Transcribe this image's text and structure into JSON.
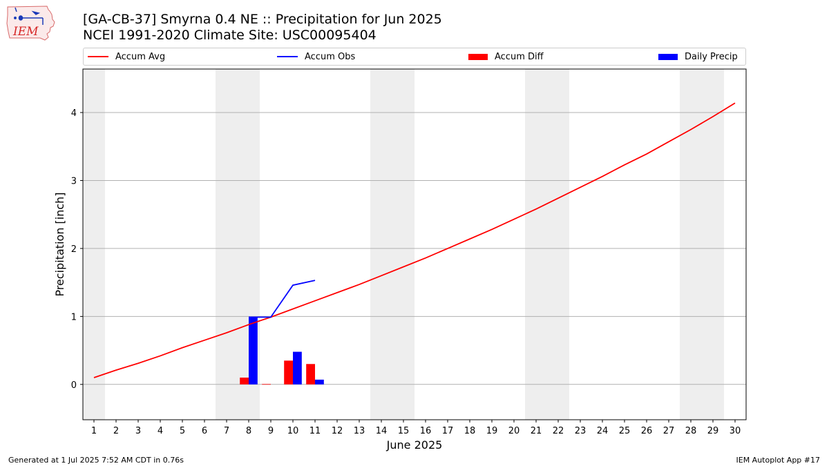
{
  "header": {
    "logo_text": "IEM",
    "title_line1": "[GA-CB-37] Smyrna 0.4 NE :: Precipitation for Jun 2025",
    "title_line2": "NCEI 1991-2020 Climate Site: USC00095404"
  },
  "legend": {
    "items": [
      {
        "label": "Accum Avg",
        "kind": "line",
        "color": "#ff0000"
      },
      {
        "label": "Accum Obs",
        "kind": "line",
        "color": "#0000ff"
      },
      {
        "label": "Accum Diff",
        "kind": "bar",
        "color": "#ff0000"
      },
      {
        "label": "Daily Precip",
        "kind": "bar",
        "color": "#0000ff"
      }
    ],
    "placement": "top"
  },
  "footer": {
    "left": "Generated at 1 Jul 2025 7:52 AM CDT in 0.76s",
    "right": "IEM Autoplot App #17"
  },
  "colors": {
    "accum_avg": "#ff0000",
    "accum_obs": "#0000ff",
    "accum_diff": "#ff0000",
    "daily_precip": "#0000ff",
    "weekend_shade": "#eeeeee",
    "grid": "#b0b0b0"
  },
  "chart_data": {
    "type": "line",
    "title": "[GA-CB-37] Smyrna 0.4 NE :: Precipitation for Jun 2025",
    "subtitle": "NCEI 1991-2020 Climate Site: USC00095404",
    "xlabel": "June 2025",
    "ylabel": "Precipitation [inch]",
    "xlim": [
      0.5,
      30.5
    ],
    "ylim": [
      -0.52,
      4.64
    ],
    "x_ticks": [
      1,
      2,
      3,
      4,
      5,
      6,
      7,
      8,
      9,
      10,
      11,
      12,
      13,
      14,
      15,
      16,
      17,
      18,
      19,
      20,
      21,
      22,
      23,
      24,
      25,
      26,
      27,
      28,
      29,
      30
    ],
    "y_ticks": [
      0,
      1,
      2,
      3,
      4
    ],
    "grid": "horizontal",
    "weekend_shading": [
      [
        0.5,
        1.5
      ],
      [
        6.5,
        8.5
      ],
      [
        13.5,
        15.5
      ],
      [
        20.5,
        22.5
      ],
      [
        27.5,
        29.5
      ]
    ],
    "series": [
      {
        "name": "Accum Avg",
        "type": "line",
        "x": [
          1,
          2,
          3,
          4,
          5,
          6,
          7,
          8,
          9,
          10,
          11,
          12,
          13,
          14,
          15,
          16,
          17,
          18,
          19,
          20,
          21,
          22,
          23,
          24,
          25,
          26,
          27,
          28,
          29,
          30
        ],
        "values": [
          0.1,
          0.21,
          0.31,
          0.42,
          0.54,
          0.65,
          0.76,
          0.88,
          0.99,
          1.11,
          1.23,
          1.35,
          1.47,
          1.6,
          1.73,
          1.86,
          2.0,
          2.14,
          2.28,
          2.43,
          2.58,
          2.74,
          2.9,
          3.06,
          3.23,
          3.39,
          3.57,
          3.75,
          3.94,
          4.14
        ]
      },
      {
        "name": "Accum Obs",
        "type": "line",
        "x": [
          8,
          9,
          10,
          11
        ],
        "values": [
          0.99,
          0.99,
          1.46,
          1.53
        ]
      },
      {
        "name": "Accum Diff",
        "type": "bar",
        "x": [
          8,
          9,
          10,
          11
        ],
        "values": [
          0.1,
          0.005,
          0.35,
          0.3
        ]
      },
      {
        "name": "Daily Precip",
        "type": "bar",
        "x": [
          8,
          10,
          11
        ],
        "values": [
          0.99,
          0.48,
          0.07
        ]
      }
    ]
  }
}
